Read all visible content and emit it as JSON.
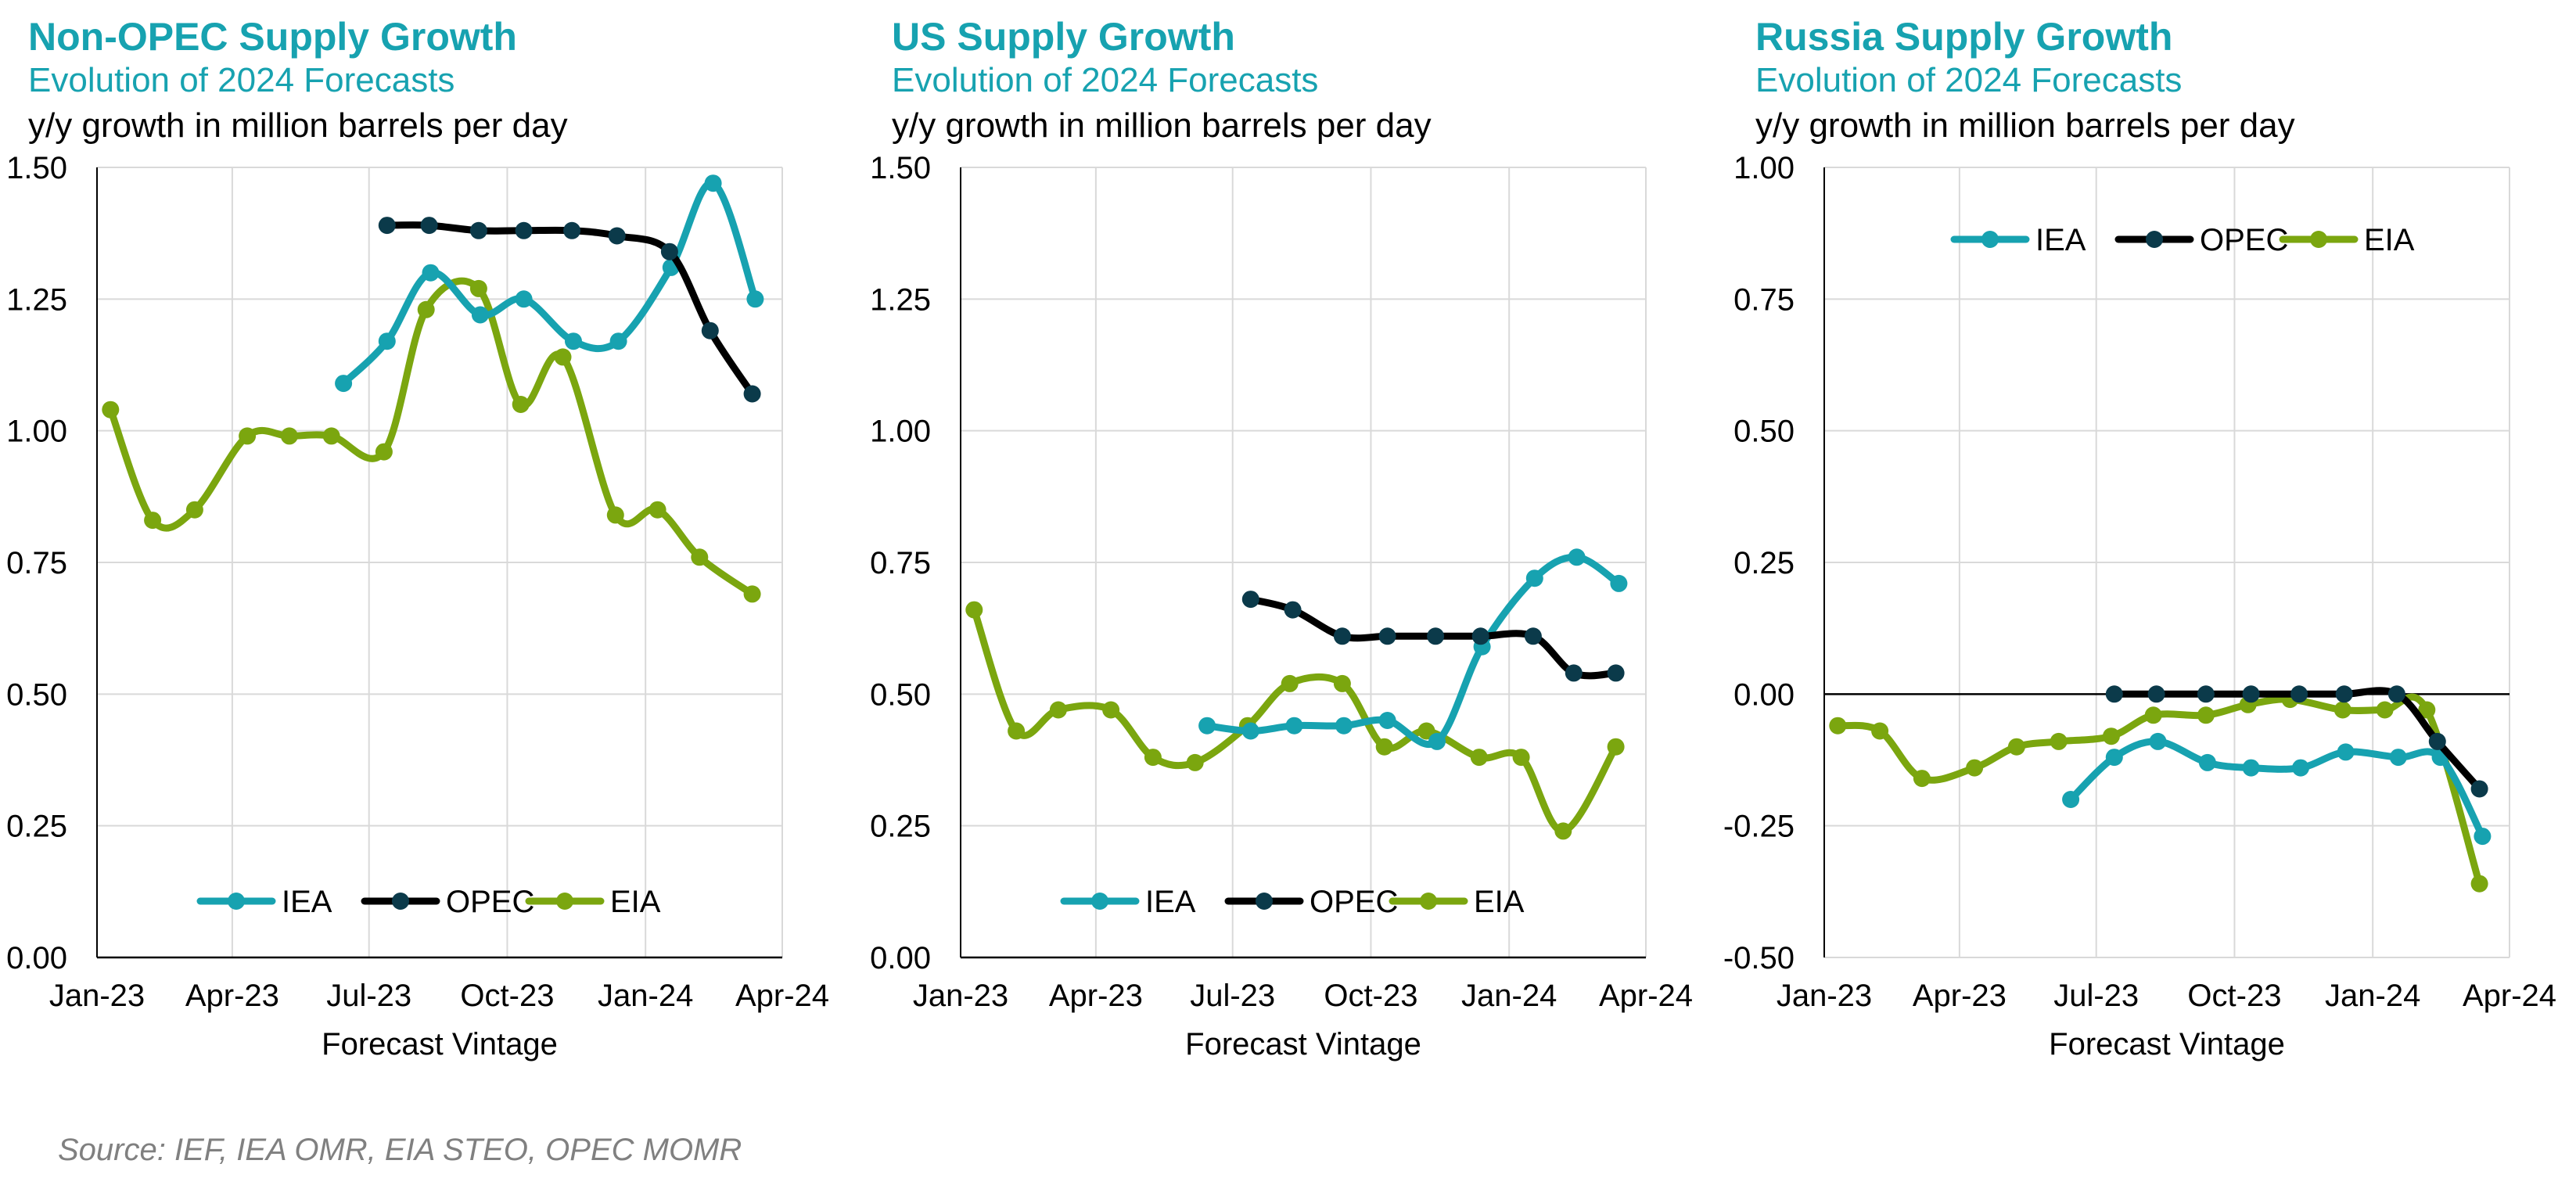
{
  "source": "Source: IEF, IEA OMR, EIA STEO, OPEC MOMR",
  "colors": {
    "IEA": "#17A2B0",
    "OPEC": "#000000",
    "OPEC_marker": "#0B3A4A",
    "EIA": "#7BA60F",
    "grid": "#D9D9D9"
  },
  "panels": [
    {
      "title": "Non-OPEC Supply Growth",
      "subtitle": "Evolution of 2024 Forecasts",
      "unit_label": "y/y growth in million barrels per day"
    },
    {
      "title": "US Supply Growth",
      "subtitle": "Evolution of 2024 Forecasts",
      "unit_label": "y/y growth in million barrels per day"
    },
    {
      "title": "Russia Supply Growth",
      "subtitle": "Evolution of 2024 Forecasts",
      "unit_label": "y/y growth in million barrels per day"
    }
  ],
  "chart_data": [
    {
      "type": "line",
      "title": "Non-OPEC Supply Growth",
      "xlabel": "Forecast Vintage",
      "ylabel": "y/y growth in million barrels per day",
      "x_ticks": [
        "Jan-23",
        "Apr-23",
        "Jul-23",
        "Oct-23",
        "Jan-24",
        "Apr-24"
      ],
      "x_range": [
        "2023-01-01",
        "2024-04-01"
      ],
      "ylim": [
        0,
        1.5
      ],
      "y_ticks": [
        "0.00",
        "0.25",
        "0.50",
        "0.75",
        "1.00",
        "1.25",
        "1.50"
      ],
      "zero_line": false,
      "grid": true,
      "legend_position": "bottom",
      "series": [
        {
          "name": "IEA",
          "points": [
            [
              "2023-06-14",
              1.09
            ],
            [
              "2023-07-13",
              1.17
            ],
            [
              "2023-08-11",
              1.3
            ],
            [
              "2023-09-13",
              1.22
            ],
            [
              "2023-10-12",
              1.25
            ],
            [
              "2023-11-14",
              1.17
            ],
            [
              "2023-12-14",
              1.17
            ],
            [
              "2024-01-18",
              1.31
            ],
            [
              "2024-02-15",
              1.47
            ],
            [
              "2024-03-14",
              1.25
            ]
          ]
        },
        {
          "name": "OPEC",
          "points": [
            [
              "2023-07-13",
              1.39
            ],
            [
              "2023-08-10",
              1.39
            ],
            [
              "2023-09-12",
              1.38
            ],
            [
              "2023-10-12",
              1.38
            ],
            [
              "2023-11-13",
              1.38
            ],
            [
              "2023-12-13",
              1.37
            ],
            [
              "2024-01-17",
              1.34
            ],
            [
              "2024-02-13",
              1.19
            ],
            [
              "2024-03-12",
              1.07
            ]
          ]
        },
        {
          "name": "EIA",
          "points": [
            [
              "2023-01-10",
              1.04
            ],
            [
              "2023-02-07",
              0.83
            ],
            [
              "2023-03-07",
              0.85
            ],
            [
              "2023-04-11",
              0.99
            ],
            [
              "2023-05-09",
              0.99
            ],
            [
              "2023-06-06",
              0.99
            ],
            [
              "2023-07-11",
              0.96
            ],
            [
              "2023-08-08",
              1.23
            ],
            [
              "2023-09-12",
              1.27
            ],
            [
              "2023-10-10",
              1.05
            ],
            [
              "2023-11-07",
              1.14
            ],
            [
              "2023-12-12",
              0.84
            ],
            [
              "2024-01-09",
              0.85
            ],
            [
              "2024-02-06",
              0.76
            ],
            [
              "2024-03-12",
              0.69
            ]
          ]
        }
      ]
    },
    {
      "type": "line",
      "title": "US Supply Growth",
      "xlabel": "Forecast Vintage",
      "ylabel": "y/y growth in million barrels per day",
      "x_ticks": [
        "Jan-23",
        "Apr-23",
        "Jul-23",
        "Oct-23",
        "Jan-24",
        "Apr-24"
      ],
      "x_range": [
        "2023-01-01",
        "2024-04-01"
      ],
      "ylim": [
        0,
        1.5
      ],
      "y_ticks": [
        "0.00",
        "0.25",
        "0.50",
        "0.75",
        "1.00",
        "1.25",
        "1.50"
      ],
      "zero_line": false,
      "grid": true,
      "legend_position": "bottom",
      "series": [
        {
          "name": "IEA",
          "points": [
            [
              "2023-06-14",
              0.44
            ],
            [
              "2023-07-13",
              0.43
            ],
            [
              "2023-08-11",
              0.44
            ],
            [
              "2023-09-13",
              0.44
            ],
            [
              "2023-10-12",
              0.45
            ],
            [
              "2023-11-14",
              0.41
            ],
            [
              "2023-12-14",
              0.59
            ],
            [
              "2024-01-18",
              0.72
            ],
            [
              "2024-02-15",
              0.76
            ],
            [
              "2024-03-14",
              0.71
            ]
          ]
        },
        {
          "name": "OPEC",
          "points": [
            [
              "2023-07-13",
              0.68
            ],
            [
              "2023-08-10",
              0.66
            ],
            [
              "2023-09-12",
              0.61
            ],
            [
              "2023-10-12",
              0.61
            ],
            [
              "2023-11-13",
              0.61
            ],
            [
              "2023-12-13",
              0.61
            ],
            [
              "2024-01-17",
              0.61
            ],
            [
              "2024-02-13",
              0.54
            ],
            [
              "2024-03-12",
              0.54
            ]
          ]
        },
        {
          "name": "EIA",
          "points": [
            [
              "2023-01-10",
              0.66
            ],
            [
              "2023-02-07",
              0.43
            ],
            [
              "2023-03-07",
              0.47
            ],
            [
              "2023-04-11",
              0.47
            ],
            [
              "2023-05-09",
              0.38
            ],
            [
              "2023-06-06",
              0.37
            ],
            [
              "2023-07-11",
              0.44
            ],
            [
              "2023-08-08",
              0.52
            ],
            [
              "2023-09-12",
              0.52
            ],
            [
              "2023-10-10",
              0.4
            ],
            [
              "2023-11-07",
              0.43
            ],
            [
              "2023-12-12",
              0.38
            ],
            [
              "2024-01-09",
              0.38
            ],
            [
              "2024-02-06",
              0.24
            ],
            [
              "2024-03-12",
              0.4
            ]
          ]
        }
      ]
    },
    {
      "type": "line",
      "title": "Russia Supply Growth",
      "xlabel": "Forecast Vintage",
      "ylabel": "y/y growth in million barrels per day",
      "x_ticks": [
        "Jan-23",
        "Apr-23",
        "Jul-23",
        "Oct-23",
        "Jan-24",
        "Apr-24"
      ],
      "x_range": [
        "2023-01-01",
        "2024-04-01"
      ],
      "ylim": [
        -0.5,
        1.0
      ],
      "y_ticks": [
        "-0.50",
        "-0.25",
        "0.00",
        "0.25",
        "0.50",
        "0.75",
        "1.00"
      ],
      "zero_line": true,
      "grid": true,
      "legend_position": "top",
      "series": [
        {
          "name": "IEA",
          "points": [
            [
              "2023-06-14",
              -0.2
            ],
            [
              "2023-07-13",
              -0.12
            ],
            [
              "2023-08-11",
              -0.09
            ],
            [
              "2023-09-13",
              -0.13
            ],
            [
              "2023-10-12",
              -0.14
            ],
            [
              "2023-11-14",
              -0.14
            ],
            [
              "2023-12-14",
              -0.11
            ],
            [
              "2024-01-18",
              -0.12
            ],
            [
              "2024-02-15",
              -0.12
            ],
            [
              "2024-03-14",
              -0.27
            ]
          ]
        },
        {
          "name": "OPEC",
          "points": [
            [
              "2023-07-13",
              0.0
            ],
            [
              "2023-08-10",
              0.0
            ],
            [
              "2023-09-12",
              0.0
            ],
            [
              "2023-10-12",
              0.0
            ],
            [
              "2023-11-13",
              0.0
            ],
            [
              "2023-12-13",
              0.0
            ],
            [
              "2024-01-17",
              0.0
            ],
            [
              "2024-02-13",
              -0.09
            ],
            [
              "2024-03-12",
              -0.18
            ]
          ]
        },
        {
          "name": "EIA",
          "points": [
            [
              "2023-01-10",
              -0.06
            ],
            [
              "2023-02-07",
              -0.07
            ],
            [
              "2023-03-07",
              -0.16
            ],
            [
              "2023-04-11",
              -0.14
            ],
            [
              "2023-05-09",
              -0.1
            ],
            [
              "2023-06-06",
              -0.09
            ],
            [
              "2023-07-11",
              -0.08
            ],
            [
              "2023-08-08",
              -0.04
            ],
            [
              "2023-09-12",
              -0.04
            ],
            [
              "2023-10-10",
              -0.02
            ],
            [
              "2023-11-07",
              -0.01
            ],
            [
              "2023-12-12",
              -0.03
            ],
            [
              "2024-01-09",
              -0.03
            ],
            [
              "2024-02-06",
              -0.03
            ],
            [
              "2024-03-12",
              -0.36
            ]
          ]
        }
      ]
    }
  ]
}
